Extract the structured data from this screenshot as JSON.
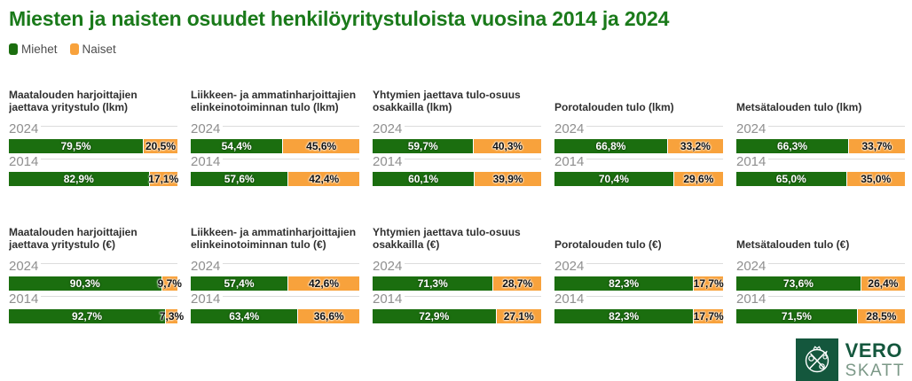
{
  "page": {
    "title": "Miesten ja naisten osuudet henkilöyritystuloista vuosina 2014 ja 2024"
  },
  "legend": [
    {
      "label": "Miehet",
      "color": "#1b6e0f"
    },
    {
      "label": "Naiset",
      "color": "#f8a23c"
    }
  ],
  "colors": {
    "men": "#1b6e0f",
    "women": "#f8a23c",
    "title_green": "#1a7a1a",
    "logo_green": "#14573d",
    "logo_muted": "#7b9887",
    "year_gray": "#8f8f8f",
    "divider_gray": "#dcdcdc"
  },
  "logo": {
    "line1": "VERO",
    "line2": "SKATT"
  },
  "chart_data": {
    "type": "bar",
    "variant": "horizontal-stacked-100-percent",
    "series_names": [
      "Miehet",
      "Naiset"
    ],
    "categories": [
      "2024",
      "2014"
    ],
    "unit": "%",
    "legend_position": "top-left",
    "charts": [
      {
        "title": "Maatalouden harjoittajien jaettava yritystulo (lkm)",
        "rows": [
          {
            "year": "2024",
            "miehet": 79.5,
            "naiset": 20.5,
            "miehet_label": "79,5%",
            "naiset_label": "20,5%"
          },
          {
            "year": "2014",
            "miehet": 82.9,
            "naiset": 17.1,
            "miehet_label": "82,9%",
            "naiset_label": "17,1%"
          }
        ]
      },
      {
        "title": "Liikkeen- ja ammatinharjoittajien elinkeinotoiminnan tulo (lkm)",
        "rows": [
          {
            "year": "2024",
            "miehet": 54.4,
            "naiset": 45.6,
            "miehet_label": "54,4%",
            "naiset_label": "45,6%"
          },
          {
            "year": "2014",
            "miehet": 57.6,
            "naiset": 42.4,
            "miehet_label": "57,6%",
            "naiset_label": "42,4%"
          }
        ]
      },
      {
        "title": "Yhtymien jaettava tulo-osuus osakkailla (lkm)",
        "rows": [
          {
            "year": "2024",
            "miehet": 59.7,
            "naiset": 40.3,
            "miehet_label": "59,7%",
            "naiset_label": "40,3%"
          },
          {
            "year": "2014",
            "miehet": 60.1,
            "naiset": 39.9,
            "miehet_label": "60,1%",
            "naiset_label": "39,9%"
          }
        ]
      },
      {
        "title": "Porotalouden tulo (lkm)",
        "rows": [
          {
            "year": "2024",
            "miehet": 66.8,
            "naiset": 33.2,
            "miehet_label": "66,8%",
            "naiset_label": "33,2%"
          },
          {
            "year": "2014",
            "miehet": 70.4,
            "naiset": 29.6,
            "miehet_label": "70,4%",
            "naiset_label": "29,6%"
          }
        ]
      },
      {
        "title": "Metsätalouden tulo (lkm)",
        "rows": [
          {
            "year": "2024",
            "miehet": 66.3,
            "naiset": 33.7,
            "miehet_label": "66,3%",
            "naiset_label": "33,7%"
          },
          {
            "year": "2014",
            "miehet": 65.0,
            "naiset": 35.0,
            "miehet_label": "65,0%",
            "naiset_label": "35,0%"
          }
        ]
      },
      {
        "title": "Maatalouden harjoittajien jaettava yritystulo (€)",
        "rows": [
          {
            "year": "2024",
            "miehet": 90.3,
            "naiset": 9.7,
            "miehet_label": "90,3%",
            "naiset_label": "9,7%"
          },
          {
            "year": "2014",
            "miehet": 92.7,
            "naiset": 7.3,
            "miehet_label": "92,7%",
            "naiset_label": "7,3%"
          }
        ]
      },
      {
        "title": "Liikkeen- ja ammatinharjoittajien elinkeinotoiminnan tulo (€)",
        "rows": [
          {
            "year": "2024",
            "miehet": 57.4,
            "naiset": 42.6,
            "miehet_label": "57,4%",
            "naiset_label": "42,6%"
          },
          {
            "year": "2014",
            "miehet": 63.4,
            "naiset": 36.6,
            "miehet_label": "63,4%",
            "naiset_label": "36,6%"
          }
        ]
      },
      {
        "title": "Yhtymien jaettava tulo-osuus osakkailla (€)",
        "rows": [
          {
            "year": "2024",
            "miehet": 71.3,
            "naiset": 28.7,
            "miehet_label": "71,3%",
            "naiset_label": "28,7%"
          },
          {
            "year": "2014",
            "miehet": 72.9,
            "naiset": 27.1,
            "miehet_label": "72,9%",
            "naiset_label": "27,1%"
          }
        ]
      },
      {
        "title": "Porotalouden tulo (€)",
        "rows": [
          {
            "year": "2024",
            "miehet": 82.3,
            "naiset": 17.7,
            "miehet_label": "82,3%",
            "naiset_label": "17,7%"
          },
          {
            "year": "2014",
            "miehet": 82.3,
            "naiset": 17.7,
            "miehet_label": "82,3%",
            "naiset_label": "17,7%"
          }
        ]
      },
      {
        "title": "Metsätalouden tulo (€)",
        "rows": [
          {
            "year": "2024",
            "miehet": 73.6,
            "naiset": 26.4,
            "miehet_label": "73,6%",
            "naiset_label": "26,4%"
          },
          {
            "year": "2014",
            "miehet": 71.5,
            "naiset": 28.5,
            "miehet_label": "71,5%",
            "naiset_label": "28,5%"
          }
        ]
      }
    ]
  }
}
